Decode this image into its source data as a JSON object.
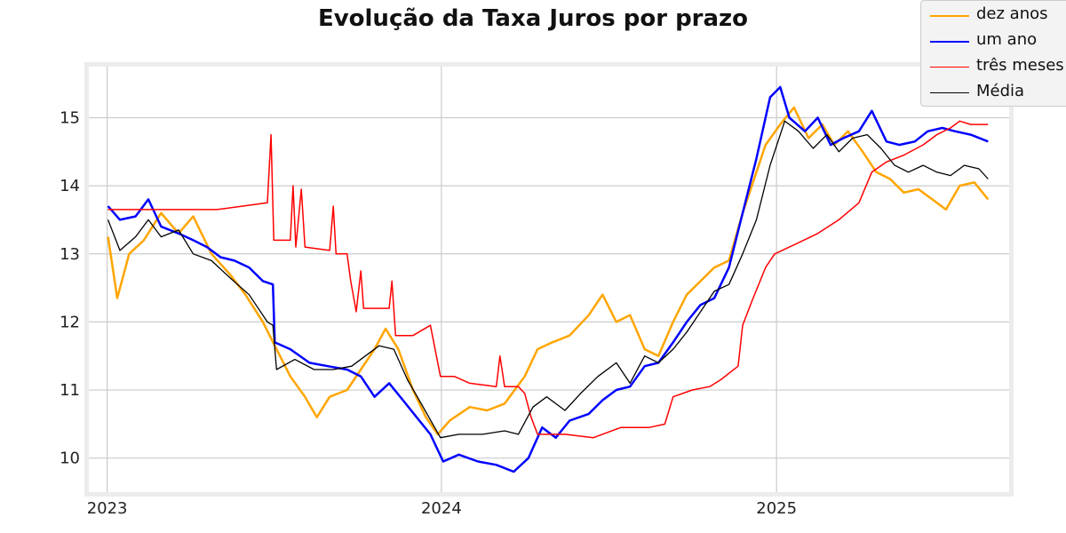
{
  "chart_data": {
    "type": "line",
    "title": "Evolução da Taxa Juros por prazo",
    "xlabel": "",
    "ylabel": "",
    "x_ticks": [
      "2023",
      "2024",
      "2025"
    ],
    "y_ticks": [
      10,
      11,
      12,
      13,
      14,
      15
    ],
    "xlim": [
      "2022-12-12",
      "2025-09-12"
    ],
    "ylim": [
      9.5,
      15.75
    ],
    "grid": true,
    "legend_position": "top-right",
    "series": [
      {
        "name": "dez anos",
        "color": "#ffa500",
        "line_width": 2.5,
        "points": [
          [
            "2023-01-02",
            13.25
          ],
          [
            "2023-01-12",
            12.35
          ],
          [
            "2023-01-25",
            13.0
          ],
          [
            "2023-02-10",
            13.2
          ],
          [
            "2023-03-01",
            13.6
          ],
          [
            "2023-03-20",
            13.3
          ],
          [
            "2023-04-05",
            13.55
          ],
          [
            "2023-04-25",
            13.0
          ],
          [
            "2023-05-15",
            12.7
          ],
          [
            "2023-06-01",
            12.4
          ],
          [
            "2023-06-20",
            12.0
          ],
          [
            "2023-07-05",
            11.6
          ],
          [
            "2023-07-20",
            11.2
          ],
          [
            "2023-08-05",
            10.9
          ],
          [
            "2023-08-18",
            10.6
          ],
          [
            "2023-09-01",
            10.9
          ],
          [
            "2023-09-20",
            11.0
          ],
          [
            "2023-10-05",
            11.3
          ],
          [
            "2023-10-20",
            11.6
          ],
          [
            "2023-11-01",
            11.9
          ],
          [
            "2023-11-15",
            11.6
          ],
          [
            "2023-12-01",
            11.0
          ],
          [
            "2023-12-15",
            10.6
          ],
          [
            "2023-12-28",
            10.35
          ],
          [
            "2024-01-10",
            10.55
          ],
          [
            "2024-02-01",
            10.75
          ],
          [
            "2024-02-20",
            10.7
          ],
          [
            "2024-03-10",
            10.8
          ],
          [
            "2024-04-01",
            11.2
          ],
          [
            "2024-04-15",
            11.6
          ],
          [
            "2024-05-01",
            11.7
          ],
          [
            "2024-05-20",
            11.8
          ],
          [
            "2024-06-10",
            12.1
          ],
          [
            "2024-06-25",
            12.4
          ],
          [
            "2024-07-10",
            12.0
          ],
          [
            "2024-07-25",
            12.1
          ],
          [
            "2024-08-10",
            11.6
          ],
          [
            "2024-08-25",
            11.5
          ],
          [
            "2024-09-10",
            12.0
          ],
          [
            "2024-09-25",
            12.4
          ],
          [
            "2024-10-10",
            12.6
          ],
          [
            "2024-10-25",
            12.8
          ],
          [
            "2024-11-10",
            12.9
          ],
          [
            "2024-11-25",
            13.6
          ],
          [
            "2024-12-10",
            14.2
          ],
          [
            "2024-12-20",
            14.6
          ],
          [
            "2025-01-05",
            14.9
          ],
          [
            "2025-01-20",
            15.15
          ],
          [
            "2025-02-05",
            14.7
          ],
          [
            "2025-02-20",
            14.9
          ],
          [
            "2025-03-05",
            14.6
          ],
          [
            "2025-03-20",
            14.8
          ],
          [
            "2025-04-05",
            14.5
          ],
          [
            "2025-04-20",
            14.2
          ],
          [
            "2025-05-05",
            14.1
          ],
          [
            "2025-05-20",
            13.9
          ],
          [
            "2025-06-05",
            13.95
          ],
          [
            "2025-06-20",
            13.8
          ],
          [
            "2025-07-05",
            13.65
          ],
          [
            "2025-07-20",
            14.0
          ],
          [
            "2025-08-05",
            14.05
          ],
          [
            "2025-08-20",
            13.8
          ]
        ]
      },
      {
        "name": "um ano",
        "color": "#0000ff",
        "line_width": 2.5,
        "points": [
          [
            "2023-01-02",
            13.7
          ],
          [
            "2023-01-15",
            13.5
          ],
          [
            "2023-02-01",
            13.55
          ],
          [
            "2023-02-15",
            13.8
          ],
          [
            "2023-03-01",
            13.4
          ],
          [
            "2023-03-20",
            13.3
          ],
          [
            "2023-04-05",
            13.2
          ],
          [
            "2023-04-20",
            13.1
          ],
          [
            "2023-05-05",
            12.95
          ],
          [
            "2023-05-20",
            12.9
          ],
          [
            "2023-06-05",
            12.8
          ],
          [
            "2023-06-20",
            12.6
          ],
          [
            "2023-07-01",
            12.55
          ],
          [
            "2023-07-03",
            11.7
          ],
          [
            "2023-07-20",
            11.6
          ],
          [
            "2023-08-10",
            11.4
          ],
          [
            "2023-08-30",
            11.35
          ],
          [
            "2023-09-20",
            11.3
          ],
          [
            "2023-10-05",
            11.2
          ],
          [
            "2023-10-20",
            10.9
          ],
          [
            "2023-11-05",
            11.1
          ],
          [
            "2023-11-20",
            10.85
          ],
          [
            "2023-12-05",
            10.6
          ],
          [
            "2023-12-20",
            10.35
          ],
          [
            "2024-01-03",
            9.95
          ],
          [
            "2024-01-20",
            10.05
          ],
          [
            "2024-02-10",
            9.95
          ],
          [
            "2024-03-01",
            9.9
          ],
          [
            "2024-03-20",
            9.8
          ],
          [
            "2024-04-05",
            10.0
          ],
          [
            "2024-04-20",
            10.45
          ],
          [
            "2024-05-05",
            10.3
          ],
          [
            "2024-05-20",
            10.55
          ],
          [
            "2024-06-10",
            10.65
          ],
          [
            "2024-06-25",
            10.85
          ],
          [
            "2024-07-10",
            11.0
          ],
          [
            "2024-07-25",
            11.05
          ],
          [
            "2024-08-10",
            11.35
          ],
          [
            "2024-08-25",
            11.4
          ],
          [
            "2024-09-10",
            11.7
          ],
          [
            "2024-09-25",
            12.0
          ],
          [
            "2024-10-10",
            12.25
          ],
          [
            "2024-10-25",
            12.35
          ],
          [
            "2024-11-10",
            12.8
          ],
          [
            "2024-11-25",
            13.6
          ],
          [
            "2024-12-10",
            14.4
          ],
          [
            "2024-12-25",
            15.3
          ],
          [
            "2025-01-05",
            15.45
          ],
          [
            "2025-01-15",
            15.0
          ],
          [
            "2025-02-01",
            14.8
          ],
          [
            "2025-02-15",
            15.0
          ],
          [
            "2025-03-01",
            14.6
          ],
          [
            "2025-03-15",
            14.7
          ],
          [
            "2025-04-01",
            14.8
          ],
          [
            "2025-04-15",
            15.1
          ],
          [
            "2025-05-01",
            14.65
          ],
          [
            "2025-05-15",
            14.6
          ],
          [
            "2025-06-01",
            14.65
          ],
          [
            "2025-06-15",
            14.8
          ],
          [
            "2025-07-01",
            14.85
          ],
          [
            "2025-07-15",
            14.8
          ],
          [
            "2025-08-01",
            14.75
          ],
          [
            "2025-08-20",
            14.65
          ]
        ]
      },
      {
        "name": "três meses",
        "color": "#ff0000",
        "line_width": 1.5,
        "points": [
          [
            "2023-01-02",
            13.65
          ],
          [
            "2023-03-01",
            13.65
          ],
          [
            "2023-05-01",
            13.65
          ],
          [
            "2023-06-25",
            13.75
          ],
          [
            "2023-06-29",
            14.75
          ],
          [
            "2023-07-02",
            13.2
          ],
          [
            "2023-07-20",
            13.2
          ],
          [
            "2023-07-23",
            14.0
          ],
          [
            "2023-07-26",
            13.1
          ],
          [
            "2023-08-01",
            13.95
          ],
          [
            "2023-08-05",
            13.1
          ],
          [
            "2023-09-01",
            13.05
          ],
          [
            "2023-09-05",
            13.7
          ],
          [
            "2023-09-08",
            13.0
          ],
          [
            "2023-09-20",
            13.0
          ],
          [
            "2023-09-24",
            12.6
          ],
          [
            "2023-09-30",
            12.15
          ],
          [
            "2023-10-05",
            12.75
          ],
          [
            "2023-10-08",
            12.2
          ],
          [
            "2023-11-05",
            12.2
          ],
          [
            "2023-11-08",
            12.6
          ],
          [
            "2023-11-12",
            11.8
          ],
          [
            "2023-12-01",
            11.8
          ],
          [
            "2023-12-20",
            11.95
          ],
          [
            "2023-12-31",
            11.2
          ],
          [
            "2024-01-15",
            11.2
          ],
          [
            "2024-02-01",
            11.1
          ],
          [
            "2024-03-01",
            11.05
          ],
          [
            "2024-03-05",
            11.5
          ],
          [
            "2024-03-10",
            11.05
          ],
          [
            "2024-03-25",
            11.05
          ],
          [
            "2024-04-01",
            10.95
          ],
          [
            "2024-04-08",
            10.6
          ],
          [
            "2024-04-15",
            10.35
          ],
          [
            "2024-05-15",
            10.35
          ],
          [
            "2024-06-15",
            10.3
          ],
          [
            "2024-07-15",
            10.45
          ],
          [
            "2024-08-15",
            10.45
          ],
          [
            "2024-09-01",
            10.5
          ],
          [
            "2024-09-10",
            10.9
          ],
          [
            "2024-10-01",
            11.0
          ],
          [
            "2024-10-20",
            11.05
          ],
          [
            "2024-11-01",
            11.15
          ],
          [
            "2024-11-20",
            11.35
          ],
          [
            "2024-11-25",
            11.95
          ],
          [
            "2024-12-05",
            12.3
          ],
          [
            "2024-12-20",
            12.8
          ],
          [
            "2024-12-30",
            13.0
          ],
          [
            "2025-01-15",
            13.1
          ],
          [
            "2025-02-15",
            13.3
          ],
          [
            "2025-03-10",
            13.5
          ],
          [
            "2025-04-01",
            13.75
          ],
          [
            "2025-04-15",
            14.2
          ],
          [
            "2025-05-01",
            14.35
          ],
          [
            "2025-05-20",
            14.45
          ],
          [
            "2025-06-10",
            14.6
          ],
          [
            "2025-06-25",
            14.75
          ],
          [
            "2025-07-10",
            14.85
          ],
          [
            "2025-07-20",
            14.95
          ],
          [
            "2025-08-01",
            14.9
          ],
          [
            "2025-08-20",
            14.9
          ]
        ]
      },
      {
        "name": "Média",
        "color": "#000000",
        "line_width": 1.3,
        "points": [
          [
            "2023-01-02",
            13.5
          ],
          [
            "2023-01-15",
            13.05
          ],
          [
            "2023-02-01",
            13.25
          ],
          [
            "2023-02-15",
            13.5
          ],
          [
            "2023-03-01",
            13.25
          ],
          [
            "2023-03-20",
            13.35
          ],
          [
            "2023-04-05",
            13.0
          ],
          [
            "2023-04-25",
            12.9
          ],
          [
            "2023-05-15",
            12.65
          ],
          [
            "2023-06-05",
            12.4
          ],
          [
            "2023-06-25",
            12.0
          ],
          [
            "2023-07-01",
            11.95
          ],
          [
            "2023-07-05",
            11.3
          ],
          [
            "2023-07-25",
            11.45
          ],
          [
            "2023-08-15",
            11.3
          ],
          [
            "2023-09-05",
            11.3
          ],
          [
            "2023-09-25",
            11.35
          ],
          [
            "2023-10-10",
            11.5
          ],
          [
            "2023-10-25",
            11.65
          ],
          [
            "2023-11-10",
            11.6
          ],
          [
            "2023-11-25",
            11.15
          ],
          [
            "2023-12-10",
            10.8
          ],
          [
            "2023-12-31",
            10.3
          ],
          [
            "2024-01-20",
            10.35
          ],
          [
            "2024-02-15",
            10.35
          ],
          [
            "2024-03-10",
            10.4
          ],
          [
            "2024-03-25",
            10.35
          ],
          [
            "2024-04-10",
            10.75
          ],
          [
            "2024-04-25",
            10.9
          ],
          [
            "2024-05-15",
            10.7
          ],
          [
            "2024-06-01",
            10.95
          ],
          [
            "2024-06-20",
            11.2
          ],
          [
            "2024-07-10",
            11.4
          ],
          [
            "2024-07-25",
            11.1
          ],
          [
            "2024-08-10",
            11.5
          ],
          [
            "2024-08-25",
            11.4
          ],
          [
            "2024-09-10",
            11.6
          ],
          [
            "2024-09-25",
            11.85
          ],
          [
            "2024-10-10",
            12.15
          ],
          [
            "2024-10-25",
            12.45
          ],
          [
            "2024-11-10",
            12.55
          ],
          [
            "2024-11-25",
            13.0
          ],
          [
            "2024-12-10",
            13.5
          ],
          [
            "2024-12-25",
            14.3
          ],
          [
            "2025-01-10",
            14.95
          ],
          [
            "2025-01-25",
            14.8
          ],
          [
            "2025-02-10",
            14.55
          ],
          [
            "2025-02-25",
            14.75
          ],
          [
            "2025-03-10",
            14.5
          ],
          [
            "2025-03-25",
            14.7
          ],
          [
            "2025-04-10",
            14.75
          ],
          [
            "2025-04-25",
            14.55
          ],
          [
            "2025-05-10",
            14.3
          ],
          [
            "2025-05-25",
            14.2
          ],
          [
            "2025-06-10",
            14.3
          ],
          [
            "2025-06-25",
            14.2
          ],
          [
            "2025-07-10",
            14.15
          ],
          [
            "2025-07-25",
            14.3
          ],
          [
            "2025-08-10",
            14.25
          ],
          [
            "2025-08-20",
            14.1
          ]
        ]
      }
    ]
  }
}
